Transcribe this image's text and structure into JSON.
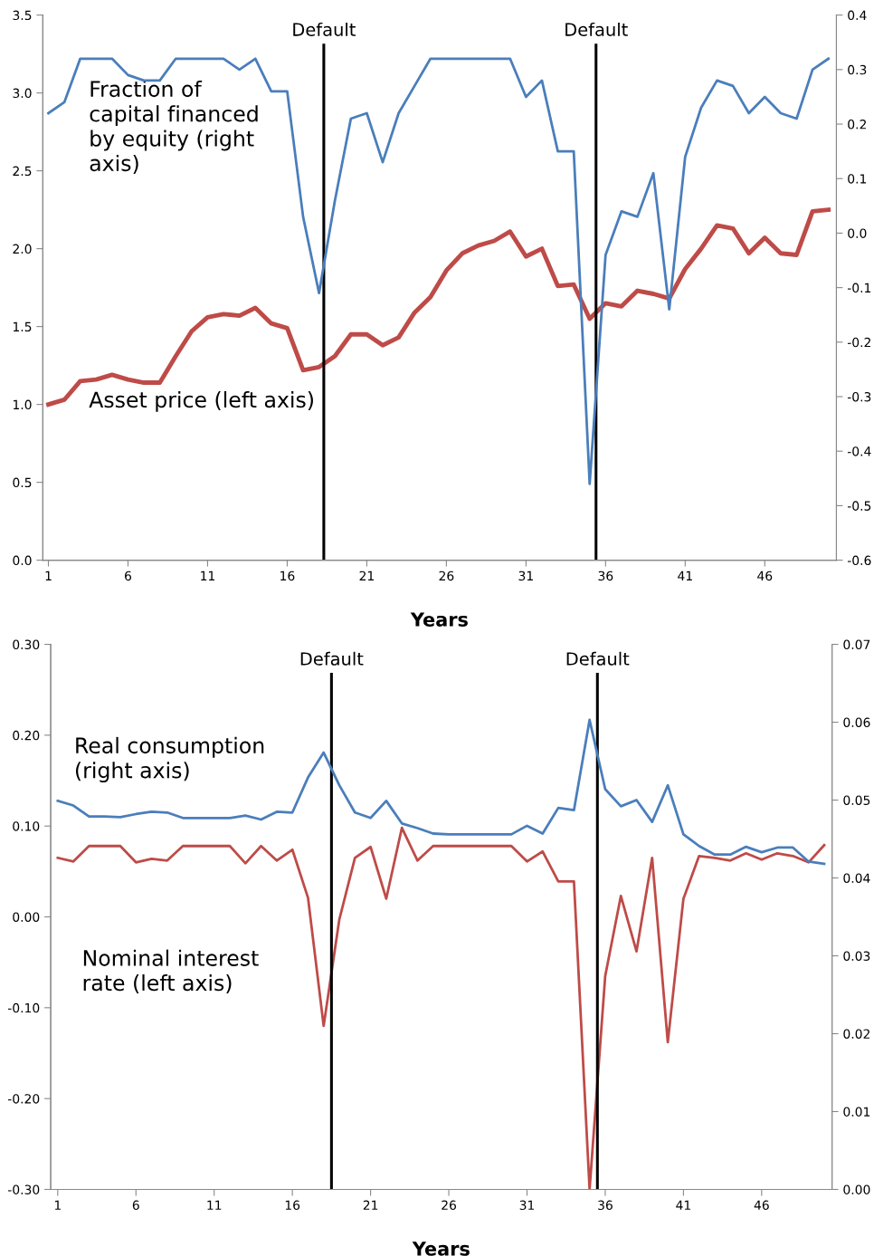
{
  "chart_data": [
    {
      "type": "line",
      "xlabel": "Years",
      "x": [
        1,
        2,
        3,
        4,
        5,
        6,
        7,
        8,
        9,
        10,
        11,
        12,
        13,
        14,
        15,
        16,
        17,
        18,
        19,
        20,
        21,
        22,
        23,
        24,
        25,
        26,
        27,
        28,
        29,
        30,
        31,
        32,
        33,
        34,
        35,
        36,
        37,
        38,
        39,
        40,
        41,
        42,
        43,
        44,
        45,
        46,
        47,
        48,
        49,
        50
      ],
      "xlim": [
        0.65,
        50.5
      ],
      "xticks": [
        1,
        6,
        11,
        16,
        21,
        26,
        31,
        36,
        41,
        46
      ],
      "ylim": [
        0,
        3.5
      ],
      "yticks": [
        {
          "value": 0,
          "label": "0.0"
        },
        {
          "value": 0.5,
          "label": "0.5"
        },
        {
          "value": 1,
          "label": "1.0"
        },
        {
          "value": 1.5,
          "label": "1.5"
        },
        {
          "value": 2,
          "label": "2.0"
        },
        {
          "value": 2.5,
          "label": "2.5"
        },
        {
          "value": 3,
          "label": "3.0"
        },
        {
          "value": 3.5,
          "label": "3.5"
        }
      ],
      "y2lim": [
        -0.6,
        0.4
      ],
      "y2ticks": [
        {
          "value": -0.6,
          "label": "-0.6"
        },
        {
          "value": -0.5,
          "label": "-0.5"
        },
        {
          "value": -0.4,
          "label": "-0.4"
        },
        {
          "value": -0.3,
          "label": "-0.3"
        },
        {
          "value": -0.2,
          "label": "-0.2"
        },
        {
          "value": -0.1,
          "label": "-0.1"
        },
        {
          "value": 0,
          "label": "0.0"
        },
        {
          "value": 0.1,
          "label": "0.1"
        },
        {
          "value": 0.2,
          "label": "0.2"
        },
        {
          "value": 0.3,
          "label": "0.3"
        },
        {
          "value": 0.4,
          "label": "0.4"
        }
      ],
      "series": [
        {
          "name": "Fraction of\ncapital financed\nby equity (right\naxis)",
          "color": "#4a7ebb",
          "axis": "y2",
          "values": [
            0.22,
            0.24,
            0.32,
            0.32,
            0.32,
            0.29,
            0.28,
            0.28,
            0.32,
            0.32,
            0.32,
            0.32,
            0.3,
            0.32,
            0.26,
            0.26,
            0.03,
            -0.11,
            0.06,
            0.21,
            0.22,
            0.13,
            0.22,
            0.27,
            0.32,
            0.32,
            0.32,
            0.32,
            0.32,
            0.32,
            0.25,
            0.28,
            0.15,
            0.15,
            -0.46,
            -0.04,
            0.04,
            0.03,
            0.11,
            -0.14,
            0.14,
            0.23,
            0.28,
            0.27,
            0.22,
            0.25,
            0.22,
            0.21,
            0.3,
            0.32
          ]
        },
        {
          "name": "Asset price (left axis)",
          "color": "#be4b48",
          "axis": "y",
          "values": [
            1.0,
            1.03,
            1.15,
            1.16,
            1.19,
            1.16,
            1.14,
            1.14,
            1.31,
            1.47,
            1.56,
            1.58,
            1.57,
            1.62,
            1.52,
            1.49,
            1.22,
            1.24,
            1.31,
            1.45,
            1.45,
            1.38,
            1.43,
            1.59,
            1.69,
            1.86,
            1.97,
            2.02,
            2.05,
            2.11,
            1.95,
            2.0,
            1.76,
            1.77,
            1.55,
            1.65,
            1.63,
            1.73,
            1.71,
            1.68,
            1.87,
            2.0,
            2.15,
            2.13,
            1.97,
            2.07,
            1.97,
            1.96,
            2.24,
            2.25
          ]
        }
      ],
      "ref_lines": [
        {
          "axis": "x",
          "value": 18.3,
          "label": "Default",
          "color": "#000000"
        },
        {
          "axis": "x",
          "value": 35.4,
          "label": "Default",
          "color": "#000000"
        }
      ],
      "grid": false,
      "legend": false,
      "marker": "none",
      "line_style": "solid"
    },
    {
      "type": "line",
      "xlabel": "Years",
      "x": [
        1,
        2,
        3,
        4,
        5,
        6,
        7,
        8,
        9,
        10,
        11,
        12,
        13,
        14,
        15,
        16,
        17,
        18,
        19,
        20,
        21,
        22,
        23,
        24,
        25,
        26,
        27,
        28,
        29,
        30,
        31,
        32,
        33,
        34,
        35,
        36,
        37,
        38,
        39,
        40,
        41,
        42,
        43,
        44,
        45,
        46,
        47,
        48,
        49,
        50
      ],
      "xlim": [
        0.55,
        50.5
      ],
      "xticks": [
        1,
        6,
        11,
        16,
        21,
        26,
        31,
        36,
        41,
        46
      ],
      "ylim": [
        -0.3,
        0.3
      ],
      "yticks": [
        {
          "value": -0.3,
          "label": "-0.30"
        },
        {
          "value": -0.2,
          "label": "-0.20"
        },
        {
          "value": -0.1,
          "label": "-0.10"
        },
        {
          "value": 0,
          "label": "0.00"
        },
        {
          "value": 0.1,
          "label": "0.10"
        },
        {
          "value": 0.2,
          "label": "0.20"
        },
        {
          "value": 0.3,
          "label": "0.30"
        }
      ],
      "y2lim": [
        0,
        0.07
      ],
      "y2ticks": [
        {
          "value": 0,
          "label": "0.00"
        },
        {
          "value": 0.01,
          "label": "0.01"
        },
        {
          "value": 0.02,
          "label": "0.02"
        },
        {
          "value": 0.03,
          "label": "0.03"
        },
        {
          "value": 0.04,
          "label": "0.04"
        },
        {
          "value": 0.05,
          "label": "0.05"
        },
        {
          "value": 0.06,
          "label": "0.06"
        },
        {
          "value": 0.07,
          "label": "0.07"
        }
      ],
      "series": [
        {
          "name": "Real consumption\n(right axis)",
          "color": "#4a7ebb",
          "axis": "y2",
          "values": [
            0.0499,
            0.0493,
            0.0479,
            0.0479,
            0.0478,
            0.0482,
            0.0485,
            0.0484,
            0.0477,
            0.0477,
            0.0477,
            0.0477,
            0.048,
            0.0475,
            0.0485,
            0.0484,
            0.0529,
            0.0561,
            0.0519,
            0.0484,
            0.0477,
            0.0499,
            0.047,
            0.0464,
            0.0457,
            0.0456,
            0.0456,
            0.0456,
            0.0456,
            0.0456,
            0.0467,
            0.0457,
            0.049,
            0.0487,
            0.0603,
            0.0514,
            0.0492,
            0.05,
            0.0472,
            0.0519,
            0.0456,
            0.0441,
            0.043,
            0.043,
            0.044,
            0.0433,
            0.0439,
            0.0439,
            0.0421,
            0.0418
          ]
        },
        {
          "name": "Nominal interest\nrate (left axis)",
          "color": "#be4b48",
          "axis": "y",
          "values": [
            0.065,
            0.061,
            0.078,
            0.078,
            0.078,
            0.06,
            0.064,
            0.062,
            0.078,
            0.078,
            0.078,
            0.078,
            0.059,
            0.078,
            0.062,
            0.074,
            0.021,
            -0.12,
            -0.003,
            0.065,
            0.077,
            0.02,
            0.098,
            0.062,
            0.078,
            0.078,
            0.078,
            0.078,
            0.078,
            0.078,
            0.061,
            0.072,
            0.039,
            0.039,
            -0.3,
            -0.065,
            0.023,
            -0.038,
            0.065,
            -0.138,
            0.02,
            0.067,
            0.065,
            0.062,
            0.07,
            0.063,
            0.07,
            0.067,
            0.06,
            0.079
          ]
        }
      ],
      "ref_lines": [
        {
          "axis": "x",
          "value": 18.5,
          "label": "Default",
          "color": "#000000"
        },
        {
          "axis": "x",
          "value": 35.5,
          "label": "Default",
          "color": "#000000"
        }
      ],
      "grid": false,
      "legend": false,
      "marker": "none",
      "line_style": "solid"
    }
  ]
}
